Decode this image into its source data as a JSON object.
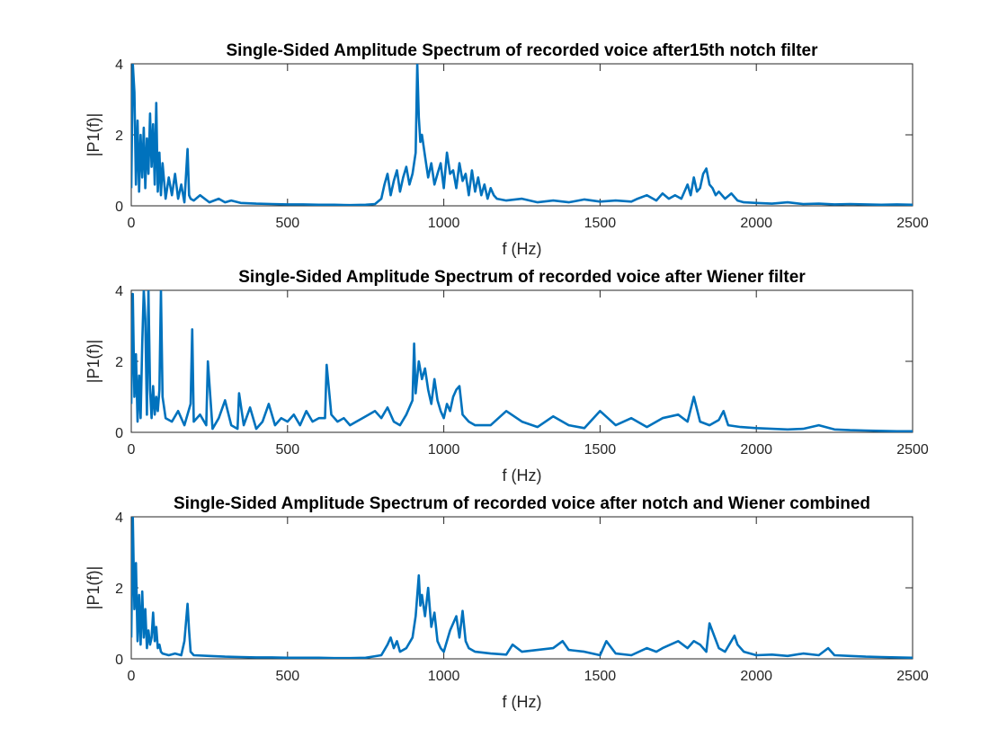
{
  "figure": {
    "background": "#ffffff",
    "line_color": "#0072BD",
    "axis_color": "#262626"
  },
  "chart_data": [
    {
      "type": "line",
      "title": "Single-Sided Amplitude Spectrum of recorded voice after15th notch filter",
      "xlabel": "f (Hz)",
      "ylabel": "|P1(f)|",
      "xlim": [
        0,
        2500
      ],
      "ylim": [
        0,
        4
      ],
      "xticks": [
        0,
        500,
        1000,
        1500,
        2000,
        2500
      ],
      "yticks": [
        0,
        2,
        4
      ],
      "grid": false,
      "series": [
        {
          "x": [
            0,
            5,
            10,
            15,
            20,
            25,
            30,
            35,
            40,
            45,
            50,
            55,
            60,
            65,
            70,
            75,
            80,
            85,
            90,
            95,
            100,
            110,
            120,
            130,
            140,
            150,
            160,
            170,
            180,
            185,
            190,
            200,
            220,
            250,
            280,
            300,
            320,
            350,
            400,
            450,
            500,
            550,
            600,
            650,
            700,
            750,
            780,
            800,
            810,
            820,
            830,
            840,
            850,
            860,
            870,
            880,
            890,
            900,
            910,
            915,
            920,
            925,
            930,
            940,
            950,
            960,
            970,
            980,
            990,
            1000,
            1010,
            1020,
            1030,
            1040,
            1050,
            1060,
            1070,
            1080,
            1090,
            1100,
            1110,
            1120,
            1130,
            1140,
            1150,
            1160,
            1170,
            1200,
            1250,
            1300,
            1350,
            1400,
            1450,
            1500,
            1550,
            1600,
            1620,
            1650,
            1680,
            1700,
            1720,
            1740,
            1760,
            1780,
            1790,
            1800,
            1810,
            1820,
            1830,
            1840,
            1850,
            1860,
            1870,
            1880,
            1900,
            1920,
            1940,
            1960,
            2000,
            2050,
            2100,
            2150,
            2200,
            2250,
            2300,
            2350,
            2400,
            2450,
            2500
          ],
          "y": [
            0.5,
            4.0,
            3.2,
            0.6,
            2.4,
            0.4,
            2.0,
            0.8,
            2.2,
            0.5,
            1.9,
            0.9,
            2.6,
            1.1,
            2.3,
            0.6,
            2.9,
            0.4,
            1.5,
            0.3,
            1.2,
            0.2,
            0.8,
            0.3,
            0.9,
            0.2,
            0.6,
            0.1,
            1.6,
            0.3,
            0.2,
            0.15,
            0.3,
            0.1,
            0.2,
            0.1,
            0.15,
            0.08,
            0.06,
            0.05,
            0.04,
            0.04,
            0.03,
            0.03,
            0.02,
            0.03,
            0.05,
            0.2,
            0.6,
            0.9,
            0.3,
            0.7,
            1.0,
            0.4,
            0.8,
            1.1,
            0.6,
            0.9,
            1.5,
            4.0,
            2.5,
            1.8,
            2.0,
            1.4,
            0.8,
            1.2,
            0.6,
            0.9,
            1.2,
            0.5,
            1.5,
            0.9,
            1.0,
            0.5,
            1.2,
            0.7,
            0.9,
            0.3,
            1.0,
            0.4,
            0.8,
            0.3,
            0.6,
            0.2,
            0.5,
            0.3,
            0.2,
            0.15,
            0.2,
            0.1,
            0.15,
            0.1,
            0.18,
            0.12,
            0.15,
            0.12,
            0.2,
            0.3,
            0.15,
            0.35,
            0.2,
            0.3,
            0.2,
            0.6,
            0.3,
            0.8,
            0.4,
            0.5,
            0.9,
            1.05,
            0.6,
            0.5,
            0.3,
            0.4,
            0.2,
            0.35,
            0.15,
            0.1,
            0.08,
            0.06,
            0.1,
            0.05,
            0.06,
            0.04,
            0.05,
            0.04,
            0.03,
            0.04,
            0.03
          ]
        }
      ]
    },
    {
      "type": "line",
      "title": "Single-Sided Amplitude Spectrum of recorded voice after Wiener filter",
      "xlabel": "f (Hz)",
      "ylabel": "|P1(f)|",
      "xlim": [
        0,
        2500
      ],
      "ylim": [
        0,
        4
      ],
      "xticks": [
        0,
        500,
        1000,
        1500,
        2000,
        2500
      ],
      "yticks": [
        0,
        2,
        4
      ],
      "grid": false,
      "series": [
        {
          "x": [
            0,
            5,
            10,
            15,
            20,
            25,
            30,
            35,
            40,
            45,
            50,
            55,
            60,
            65,
            70,
            75,
            80,
            85,
            90,
            95,
            100,
            110,
            130,
            150,
            170,
            190,
            195,
            200,
            220,
            240,
            245,
            260,
            280,
            300,
            320,
            340,
            345,
            360,
            380,
            400,
            420,
            440,
            460,
            480,
            500,
            520,
            540,
            560,
            580,
            600,
            620,
            625,
            640,
            660,
            680,
            700,
            720,
            740,
            760,
            780,
            800,
            820,
            840,
            860,
            880,
            900,
            905,
            910,
            920,
            930,
            940,
            950,
            960,
            970,
            980,
            990,
            1000,
            1010,
            1020,
            1030,
            1040,
            1050,
            1060,
            1080,
            1100,
            1150,
            1200,
            1250,
            1300,
            1350,
            1400,
            1450,
            1500,
            1550,
            1600,
            1650,
            1700,
            1750,
            1780,
            1800,
            1820,
            1850,
            1880,
            1895,
            1910,
            1950,
            2000,
            2050,
            2100,
            2150,
            2200,
            2250,
            2300,
            2350,
            2400,
            2450,
            2500
          ],
          "y": [
            0.8,
            3.9,
            1.0,
            2.2,
            0.3,
            1.6,
            0.4,
            2.5,
            4.0,
            3.2,
            0.5,
            4.0,
            1.2,
            0.4,
            1.3,
            0.5,
            1.0,
            0.6,
            1.2,
            4.0,
            1.0,
            0.4,
            0.3,
            0.6,
            0.2,
            0.8,
            2.9,
            0.3,
            0.5,
            0.2,
            2.0,
            0.1,
            0.4,
            0.9,
            0.2,
            0.1,
            1.1,
            0.2,
            0.7,
            0.1,
            0.3,
            0.8,
            0.2,
            0.4,
            0.3,
            0.5,
            0.2,
            0.6,
            0.3,
            0.4,
            0.4,
            1.9,
            0.5,
            0.3,
            0.4,
            0.2,
            0.3,
            0.4,
            0.5,
            0.6,
            0.4,
            0.7,
            0.3,
            0.2,
            0.5,
            0.9,
            2.5,
            1.1,
            2.0,
            1.5,
            1.8,
            1.2,
            0.8,
            1.5,
            0.9,
            0.6,
            0.4,
            0.8,
            0.6,
            1.0,
            1.2,
            1.3,
            0.5,
            0.3,
            0.2,
            0.2,
            0.6,
            0.3,
            0.15,
            0.45,
            0.2,
            0.12,
            0.6,
            0.2,
            0.4,
            0.15,
            0.4,
            0.5,
            0.3,
            1.0,
            0.3,
            0.2,
            0.35,
            0.6,
            0.2,
            0.15,
            0.12,
            0.1,
            0.08,
            0.1,
            0.2,
            0.08,
            0.06,
            0.05,
            0.04,
            0.03,
            0.03
          ]
        }
      ]
    },
    {
      "type": "line",
      "title": "Single-Sided Amplitude Spectrum of recorded voice after notch and Wiener combined",
      "xlabel": "f (Hz)",
      "ylabel": "|P1(f)|",
      "xlim": [
        0,
        2500
      ],
      "ylim": [
        0,
        4
      ],
      "xticks": [
        0,
        500,
        1000,
        1500,
        2000,
        2500
      ],
      "yticks": [
        0,
        2,
        4
      ],
      "grid": false,
      "series": [
        {
          "x": [
            0,
            5,
            10,
            15,
            20,
            25,
            30,
            35,
            40,
            45,
            50,
            55,
            60,
            65,
            70,
            75,
            80,
            85,
            90,
            95,
            100,
            120,
            140,
            160,
            170,
            180,
            185,
            190,
            200,
            250,
            300,
            350,
            400,
            450,
            500,
            550,
            600,
            650,
            700,
            750,
            800,
            820,
            830,
            840,
            850,
            860,
            880,
            900,
            910,
            920,
            925,
            930,
            940,
            950,
            960,
            970,
            980,
            990,
            1000,
            1020,
            1040,
            1050,
            1060,
            1070,
            1080,
            1100,
            1150,
            1200,
            1220,
            1250,
            1300,
            1350,
            1380,
            1400,
            1450,
            1500,
            1520,
            1550,
            1600,
            1650,
            1680,
            1700,
            1750,
            1780,
            1800,
            1820,
            1840,
            1850,
            1880,
            1900,
            1930,
            1940,
            1960,
            2000,
            2050,
            2100,
            2150,
            2200,
            2230,
            2250,
            2300,
            2350,
            2400,
            2450,
            2500
          ],
          "y": [
            0.6,
            4.0,
            1.4,
            2.7,
            0.5,
            1.8,
            0.4,
            1.9,
            0.6,
            1.4,
            0.3,
            0.8,
            0.4,
            0.6,
            1.3,
            0.5,
            0.9,
            0.3,
            0.4,
            0.2,
            0.15,
            0.1,
            0.15,
            0.1,
            0.5,
            1.55,
            0.8,
            0.2,
            0.1,
            0.08,
            0.06,
            0.05,
            0.04,
            0.04,
            0.03,
            0.03,
            0.03,
            0.02,
            0.02,
            0.03,
            0.1,
            0.4,
            0.6,
            0.3,
            0.5,
            0.2,
            0.3,
            0.6,
            1.2,
            2.35,
            1.5,
            1.8,
            1.2,
            2.0,
            0.9,
            1.3,
            0.5,
            0.3,
            0.2,
            0.8,
            1.2,
            0.6,
            1.35,
            0.5,
            0.3,
            0.2,
            0.15,
            0.12,
            0.4,
            0.2,
            0.25,
            0.3,
            0.5,
            0.25,
            0.2,
            0.1,
            0.5,
            0.15,
            0.1,
            0.3,
            0.2,
            0.3,
            0.5,
            0.3,
            0.5,
            0.4,
            0.2,
            1.0,
            0.3,
            0.2,
            0.65,
            0.4,
            0.2,
            0.1,
            0.12,
            0.08,
            0.15,
            0.1,
            0.3,
            0.1,
            0.08,
            0.06,
            0.05,
            0.04,
            0.03
          ]
        }
      ]
    }
  ]
}
